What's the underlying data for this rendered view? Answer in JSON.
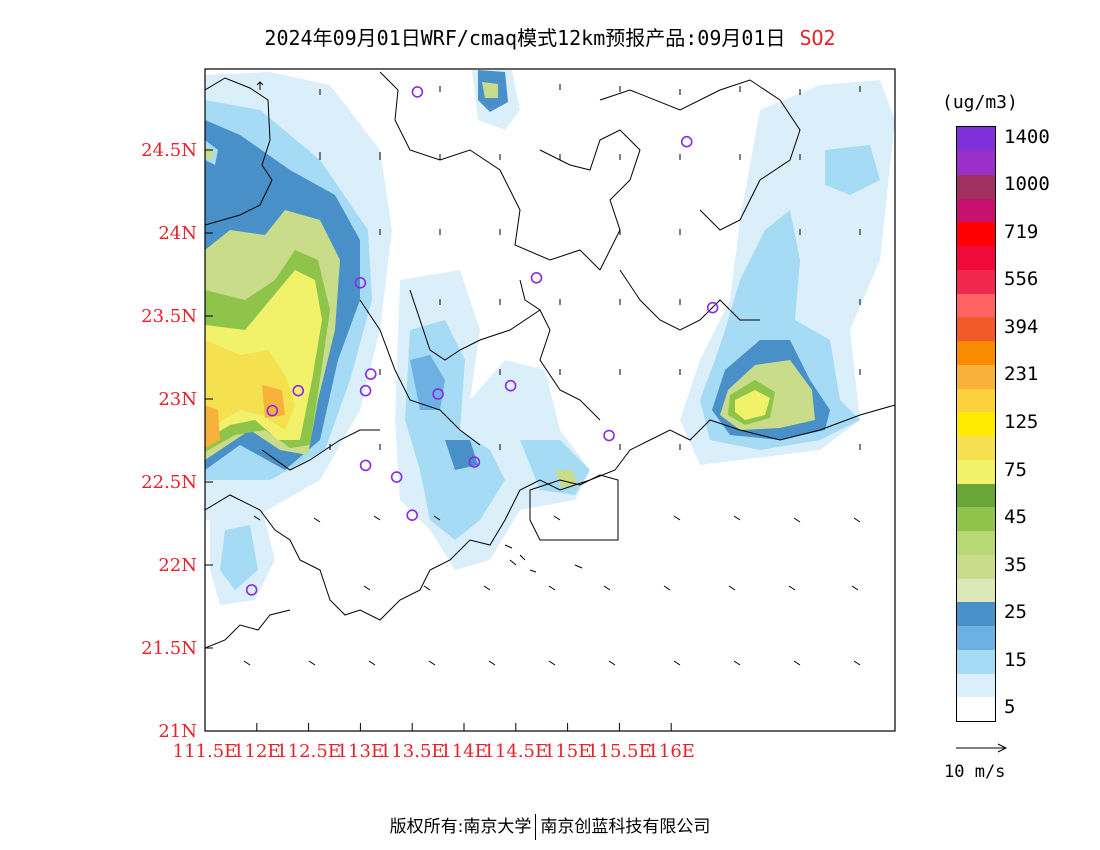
{
  "title": {
    "main": "2024年09月01日WRF/cmaq模式12km预报产品:09月01日",
    "species": "SO2"
  },
  "axes": {
    "lat_labels": [
      "21N",
      "21.5N",
      "22N",
      "22.5N",
      "23N",
      "23.5N",
      "24N",
      "24.5N"
    ],
    "lon_labels": [
      "111.5E",
      "112E",
      "112.5E",
      "113E",
      "113.5E",
      "114E",
      "114.5E",
      "115E",
      "115.5E",
      "116E"
    ],
    "tick_color": "#e8222a"
  },
  "colorbar": {
    "unit": "(ug/m3)",
    "levels": [
      {
        "color": "#ffffff",
        "label": "5"
      },
      {
        "color": "#dbeffa",
        "label": ""
      },
      {
        "color": "#a6dbf6",
        "label": "15"
      },
      {
        "color": "#6db1e4",
        "label": ""
      },
      {
        "color": "#4a90c8",
        "label": "25"
      },
      {
        "color": "#dde8b8",
        "label": ""
      },
      {
        "color": "#c8dc8a",
        "label": "35"
      },
      {
        "color": "#b8d878",
        "label": ""
      },
      {
        "color": "#8ec44a",
        "label": "45"
      },
      {
        "color": "#6aa538",
        "label": ""
      },
      {
        "color": "#f2f26a",
        "label": "75"
      },
      {
        "color": "#f5e050",
        "label": ""
      },
      {
        "color": "#ffe900",
        "label": "125"
      },
      {
        "color": "#fcd23c",
        "label": ""
      },
      {
        "color": "#f8b23c",
        "label": "231"
      },
      {
        "color": "#f88c00",
        "label": ""
      },
      {
        "color": "#f05a28",
        "label": "394"
      },
      {
        "color": "#ff6363",
        "label": ""
      },
      {
        "color": "#f02850",
        "label": "556"
      },
      {
        "color": "#f00a3c",
        "label": ""
      },
      {
        "color": "#ff0000",
        "label": "719"
      },
      {
        "color": "#c8106e",
        "label": ""
      },
      {
        "color": "#a03060",
        "label": "1000"
      },
      {
        "color": "#9a30c8",
        "label": ""
      },
      {
        "color": "#8030d8",
        "label": "1400"
      }
    ]
  },
  "wind_ref": {
    "label": "10 m/s"
  },
  "copyright": {
    "left": "版权所有:南京大学",
    "right": "南京创蓝科技有限公司"
  },
  "stations": [
    {
      "lon": 113.55,
      "lat": 24.85
    },
    {
      "lon": 116.15,
      "lat": 24.55
    },
    {
      "lon": 113.0,
      "lat": 23.7
    },
    {
      "lon": 114.7,
      "lat": 23.73
    },
    {
      "lon": 116.4,
      "lat": 23.55
    },
    {
      "lon": 112.4,
      "lat": 23.05
    },
    {
      "lon": 113.1,
      "lat": 23.15
    },
    {
      "lon": 113.05,
      "lat": 23.05
    },
    {
      "lon": 113.75,
      "lat": 23.03
    },
    {
      "lon": 114.45,
      "lat": 23.08
    },
    {
      "lon": 112.15,
      "lat": 22.93
    },
    {
      "lon": 115.4,
      "lat": 22.78
    },
    {
      "lon": 113.05,
      "lat": 22.6
    },
    {
      "lon": 113.35,
      "lat": 22.53
    },
    {
      "lon": 114.1,
      "lat": 22.62
    },
    {
      "lon": 113.5,
      "lat": 22.3
    },
    {
      "lon": 111.95,
      "lat": 21.85
    }
  ]
}
